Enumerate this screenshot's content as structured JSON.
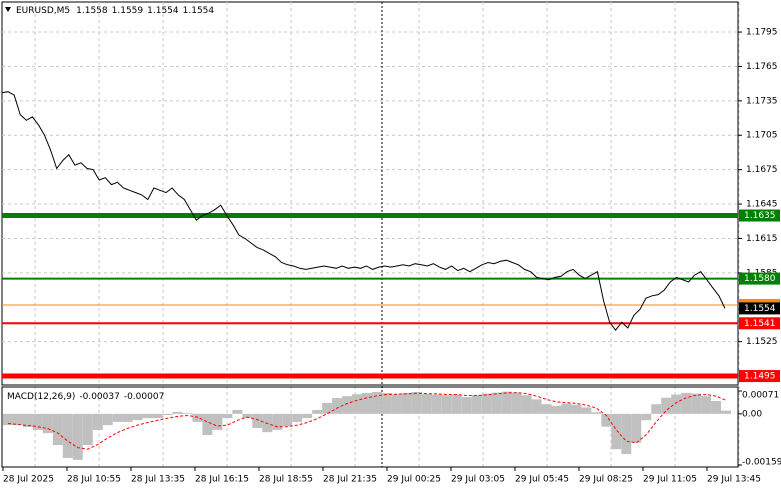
{
  "chart_data": [
    {
      "type": "line",
      "title": "EURUSD,M5",
      "ohlc": [
        1.1558,
        1.1559,
        1.1554,
        1.1554
      ],
      "color": "#000000",
      "values": [
        1.1742,
        1.1743,
        1.174,
        1.1723,
        1.1718,
        1.1721,
        1.1714,
        1.1705,
        1.1692,
        1.1676,
        1.1683,
        1.1688,
        1.1679,
        1.1681,
        1.1676,
        1.1675,
        1.1666,
        1.1668,
        1.1662,
        1.1664,
        1.1659,
        1.1657,
        1.1655,
        1.1653,
        1.1649,
        1.1659,
        1.1657,
        1.1655,
        1.1659,
        1.1653,
        1.1649,
        1.164,
        1.1631,
        1.1635,
        1.1637,
        1.164,
        1.1644,
        1.1635,
        1.1627,
        1.1618,
        1.1615,
        1.1611,
        1.1607,
        1.1605,
        1.1602,
        1.1599,
        1.1594,
        1.1592,
        1.1591,
        1.1589,
        1.1588,
        1.1589,
        1.159,
        1.1591,
        1.159,
        1.1589,
        1.1591,
        1.1589,
        1.159,
        1.1589,
        1.1591,
        1.1588,
        1.159,
        1.1591,
        1.159,
        1.1591,
        1.1592,
        1.1591,
        1.1593,
        1.1592,
        1.1591,
        1.1593,
        1.159,
        1.1588,
        1.1591,
        1.1587,
        1.1589,
        1.1586,
        1.1589,
        1.1592,
        1.1594,
        1.1593,
        1.1595,
        1.1596,
        1.1594,
        1.1592,
        1.1588,
        1.1586,
        1.1581,
        1.158,
        1.1579,
        1.1581,
        1.1582,
        1.1586,
        1.1588,
        1.1583,
        1.158,
        1.1583,
        1.1586,
        1.1561,
        1.1542,
        1.1535,
        1.1542,
        1.1537,
        1.1548,
        1.1553,
        1.1563,
        1.1565,
        1.1566,
        1.157,
        1.1577,
        1.1581,
        1.1579,
        1.1577,
        1.1583,
        1.1586,
        1.1579,
        1.1572,
        1.1565,
        1.1554
      ],
      "ylim": [
        1.14872,
        1.18212
      ],
      "yticks": [
        1.1795,
        1.1765,
        1.1735,
        1.1705,
        1.1675,
        1.1645,
        1.1615,
        1.1585,
        1.1525
      ],
      "levels": [
        {
          "value": 1.1635,
          "label": "1.1635",
          "color": "#008000",
          "thick": true
        },
        {
          "value": 1.158,
          "label": "1.1580",
          "color": "#008000",
          "thick": false
        },
        {
          "value": 1.1541,
          "label": "1.1541",
          "color": "#ff0000",
          "thick": false
        },
        {
          "value": 1.1495,
          "label": "1.1495",
          "color": "#ff0000",
          "thick": true
        }
      ],
      "ask_price": 1.1557,
      "ask_color": "#ff8c00",
      "current_price": 1.1554,
      "x_labels": [
        "28 Jul 2025",
        "28 Jul 10:55",
        "28 Jul 13:35",
        "28 Jul 16:15",
        "28 Jul 18:55",
        "28 Jul 21:35",
        "29 Jul 00:25",
        "29 Jul 03:05",
        "29 Jul 05:45",
        "29 Jul 08:25",
        "29 Jul 11:05",
        "29 Jul 13:45"
      ],
      "grid": true
    },
    {
      "type": "macd",
      "title": "MACD(12,26,9)",
      "indicator_values": [
        -0.00037,
        -7e-05
      ],
      "series": [
        {
          "style": "histogram",
          "color": "#c0c0c0",
          "values": [
            -0.00035,
            -0.00035,
            -0.00041,
            -0.0005,
            -0.0006,
            -0.00097,
            -0.00137,
            -0.00143,
            -0.00097,
            -0.0005,
            -0.00035,
            -0.00025,
            -0.00025,
            -0.00019,
            -0.00013,
            -0.00013,
            -4e-05,
            6e-05,
            2e-05,
            -0.00025,
            -0.00066,
            -0.0005,
            -0.00013,
            0.00012,
            -0.00013,
            -0.00044,
            -0.00057,
            -0.0005,
            -0.00038,
            -0.00025,
            -0.00013,
            0.00012,
            0.00034,
            0.00049,
            0.00055,
            0.00061,
            0.00065,
            0.00068,
            0.00065,
            0.00061,
            0.00065,
            0.00068,
            0.00062,
            0.0006,
            0.00058,
            0.0006,
            0.00052,
            0.00058,
            0.00063,
            0.00066,
            0.00069,
            0.00066,
            0.00058,
            0.00045,
            0.0003,
            0.00025,
            0.00032,
            0.00028,
            0.0002,
            5e-05,
            -0.0004,
            -0.0011,
            -0.00125,
            -0.0009,
            -0.0002,
            0.0003,
            0.0005,
            0.0006,
            0.00065,
            0.00063,
            0.00055,
            0.0004,
            0.0001
          ]
        },
        {
          "style": "dashed",
          "color": "#ff0000",
          "values": [
            -0.0003,
            -0.00033,
            -0.00036,
            -0.0004,
            -0.00046,
            -0.0006,
            -0.00085,
            -0.00105,
            -0.0011,
            -0.00095,
            -0.00075,
            -0.00058,
            -0.00045,
            -0.00035,
            -0.00027,
            -0.0002,
            -0.00014,
            -8e-05,
            -5e-05,
            -0.0001,
            -0.00025,
            -0.00038,
            -0.00035,
            -0.0002,
            -0.0001,
            -0.00018,
            -0.0003,
            -0.0004,
            -0.0004,
            -0.00035,
            -0.00027,
            -0.00015,
            0.0,
            0.00018,
            0.00032,
            0.00042,
            0.0005,
            0.00056,
            0.0006,
            0.00061,
            0.00062,
            0.00064,
            0.00063,
            0.00062,
            0.0006,
            0.0006,
            0.00057,
            0.00057,
            0.00059,
            0.00062,
            0.00065,
            0.00066,
            0.00063,
            0.00055,
            0.00045,
            0.00037,
            0.00035,
            0.00032,
            0.00027,
            0.00018,
            -5e-05,
            -0.0005,
            -0.00085,
            -0.0009,
            -0.00065,
            -0.00025,
            0.0001,
            0.00035,
            0.0005,
            0.00058,
            0.0006,
            0.00055,
            0.00042
          ]
        }
      ],
      "ylim": [
        -0.00159,
        0.00071
      ],
      "yticks": [
        0.00071,
        {
          "value": 0,
          "label": "0.00"
        },
        -0.00159
      ]
    }
  ]
}
